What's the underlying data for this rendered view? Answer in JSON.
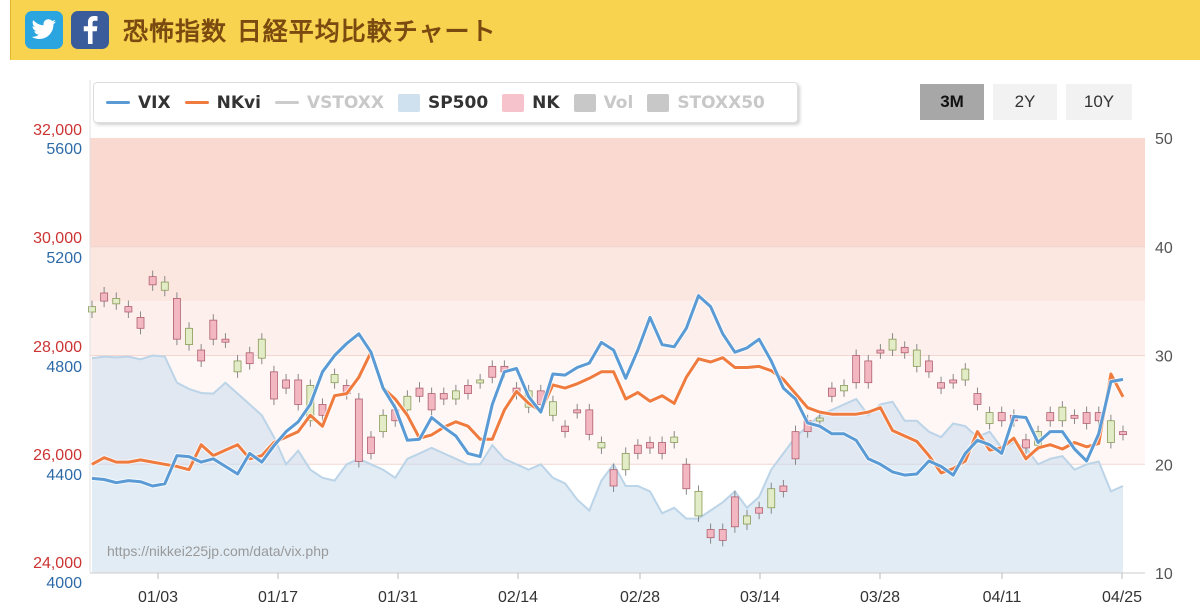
{
  "header": {
    "title": "恐怖指数 日経平均比較チャート",
    "icons": [
      "twitter-icon",
      "facebook-icon"
    ],
    "colors": {
      "background": "#f8d34f",
      "title": "#7a4b10",
      "twitter": "#2ba5e0",
      "facebook": "#3b5c9b"
    }
  },
  "legend": [
    {
      "label": "VIX",
      "swatch": "line",
      "color": "#5b9bd5",
      "active": true
    },
    {
      "label": "NKvi",
      "swatch": "line",
      "color": "#f07b3f",
      "active": true
    },
    {
      "label": "VSTOXX",
      "swatch": "line",
      "color": "#cccccc",
      "active": false
    },
    {
      "label": "SP500",
      "swatch": "box",
      "color": "#cfe0ee",
      "active": true
    },
    {
      "label": "NK",
      "swatch": "box",
      "color": "#f6c3cc",
      "active": true
    },
    {
      "label": "Vol",
      "swatch": "box",
      "color": "#c8c8c8",
      "active": false
    },
    {
      "label": "STOXX50",
      "swatch": "box",
      "color": "#c8c8c8",
      "active": false
    }
  ],
  "range_buttons": [
    {
      "label": "3M",
      "active": true
    },
    {
      "label": "2Y",
      "active": false
    },
    {
      "label": "10Y",
      "active": false
    }
  ],
  "chart_data": {
    "type": "line",
    "watermark": "https://nikkei225jp.com/data/vix.php",
    "x_labels": [
      "01/03",
      "01/17",
      "01/31",
      "02/14",
      "02/28",
      "03/14",
      "03/28",
      "04/11",
      "04/25"
    ],
    "axis_left_nk": {
      "ticks": [
        "24,000",
        "26,000",
        "28,000",
        "30,000",
        "32,000"
      ],
      "range": [
        24000,
        32000
      ],
      "color": "#cc3333"
    },
    "axis_left_sp": {
      "ticks": [
        "4000",
        "4400",
        "4800",
        "5200",
        "5600"
      ],
      "range": [
        4000,
        5600
      ],
      "color": "#2e6aa8"
    },
    "axis_right_vix": {
      "ticks": [
        "10",
        "20",
        "30",
        "40",
        "50"
      ],
      "range": [
        10,
        50
      ],
      "color": "#555555"
    },
    "vix_bands": [
      {
        "from": 40,
        "to": 50,
        "color": "#f9d9d0"
      },
      {
        "from": 35,
        "to": 40,
        "color": "#fbe6e0"
      },
      {
        "from": 30,
        "to": 35,
        "color": "#fdf0ec"
      },
      {
        "from": 20,
        "to": 30,
        "color": "#fef7f5"
      }
    ],
    "series": [
      {
        "name": "VIX",
        "color": "#5b9bd5",
        "values": [
          18.7,
          18.6,
          18.3,
          18.5,
          18.4,
          18.0,
          18.2,
          20.8,
          20.7,
          20.2,
          20.5,
          19.8,
          19.1,
          21.0,
          20.2,
          21.7,
          23.0,
          23.9,
          25.5,
          28.5,
          30.0,
          31.1,
          32.0,
          30.3,
          27.0,
          25.2,
          22.2,
          22.3,
          24.3,
          23.4,
          22.6,
          21.0,
          20.7,
          25.5,
          28.5,
          28.8,
          26.2,
          24.8,
          28.3,
          28.2,
          28.9,
          29.3,
          31.2,
          30.5,
          27.9,
          30.5,
          33.5,
          31.0,
          30.8,
          32.5,
          35.5,
          34.5,
          32.0,
          30.3,
          30.7,
          31.5,
          29.5,
          27.0,
          26.0,
          23.8,
          23.5,
          22.8,
          22.8,
          22.2,
          20.5,
          20.0,
          19.3,
          19.0,
          19.1,
          20.3,
          19.8,
          19.0,
          21.0,
          22.2,
          21.8,
          21.0,
          24.4,
          24.3,
          22.0,
          23.0,
          23.0,
          21.4,
          20.3,
          22.8,
          27.6,
          27.8
        ]
      },
      {
        "name": "NKvi",
        "color": "#f07b3f",
        "values": [
          20.0,
          20.6,
          20.2,
          20.2,
          20.4,
          20.2,
          20.0,
          19.8,
          19.5,
          21.8,
          20.8,
          21.3,
          21.8,
          20.5,
          20.8,
          22.0,
          22.5,
          23.0,
          24.5,
          23.5,
          26.3,
          26.5,
          28.0,
          30.3,
          27.0,
          26.0,
          24.5,
          22.4,
          22.7,
          23.4,
          23.9,
          23.5,
          22.3,
          22.3,
          25.0,
          26.7,
          25.6,
          24.9,
          27.3,
          27.0,
          27.4,
          27.9,
          28.5,
          28.5,
          26.0,
          26.6,
          25.8,
          26.3,
          25.6,
          28.0,
          29.7,
          29.4,
          29.8,
          28.9,
          28.9,
          29.0,
          28.6,
          27.8,
          26.5,
          25.2,
          24.8,
          24.6,
          24.6,
          24.6,
          24.8,
          25.2,
          23.1,
          22.6,
          22.1,
          20.8,
          19.2,
          19.6,
          20.3,
          23.0,
          21.3,
          21.5,
          22.4,
          20.5,
          21.5,
          21.8,
          21.4,
          22.0,
          21.6,
          21.9,
          28.3,
          26.2
        ]
      },
      {
        "name": "SP500",
        "color": "#cfe0ee",
        "y_axis": "sp",
        "values": [
          4790,
          4796,
          4793,
          4796,
          4786,
          4800,
          4796,
          4700,
          4677,
          4662,
          4660,
          4700,
          4660,
          4620,
          4580,
          4500,
          4400,
          4450,
          4380,
          4350,
          4340,
          4400,
          4420,
          4400,
          4380,
          4350,
          4420,
          4440,
          4460,
          4440,
          4420,
          4400,
          4400,
          4470,
          4420,
          4400,
          4380,
          4400,
          4350,
          4330,
          4270,
          4230,
          4340,
          4400,
          4320,
          4320,
          4300,
          4220,
          4240,
          4200,
          4200,
          4230,
          4260,
          4300,
          4240,
          4280,
          4380,
          4440,
          4500,
          4540,
          4580,
          4600,
          4620,
          4640,
          4580,
          4620,
          4630,
          4560,
          4560,
          4520,
          4500,
          4550,
          4540,
          4500,
          4520,
          4460,
          4480,
          4460,
          4400,
          4420,
          4430,
          4380,
          4400,
          4410,
          4300,
          4320
        ]
      }
    ],
    "nk_candles": [
      [
        28800,
        28900
      ],
      [
        29000,
        29150
      ],
      [
        28950,
        29050
      ],
      [
        28800,
        28900
      ],
      [
        28500,
        28700
      ],
      [
        29300,
        29450
      ],
      [
        29200,
        29350
      ],
      [
        28300,
        29050
      ],
      [
        28200,
        28500
      ],
      [
        27900,
        28100
      ],
      [
        28300,
        28650
      ],
      [
        28250,
        28300
      ],
      [
        27700,
        27900
      ],
      [
        27850,
        28050
      ],
      [
        27950,
        28300
      ],
      [
        27200,
        27700
      ],
      [
        27400,
        27550
      ],
      [
        27100,
        27550
      ],
      [
        26800,
        27450
      ],
      [
        26900,
        27100
      ],
      [
        27500,
        27650
      ],
      [
        27300,
        27450
      ],
      [
        26050,
        27200
      ],
      [
        26200,
        26500
      ],
      [
        26600,
        26900
      ],
      [
        26800,
        27000
      ],
      [
        27000,
        27250
      ],
      [
        27250,
        27400
      ],
      [
        27000,
        27300
      ],
      [
        27200,
        27300
      ],
      [
        27200,
        27350
      ],
      [
        27300,
        27450
      ],
      [
        27500,
        27550
      ],
      [
        27600,
        27800
      ],
      [
        27700,
        27800
      ],
      [
        27300,
        27400
      ],
      [
        27050,
        27350
      ],
      [
        27100,
        27350
      ],
      [
        26900,
        27150
      ],
      [
        26600,
        26700
      ],
      [
        26950,
        27000
      ],
      [
        26550,
        27000
      ],
      [
        26300,
        26400
      ],
      [
        25600,
        25900
      ],
      [
        25900,
        26200
      ],
      [
        26200,
        26350
      ],
      [
        26300,
        26400
      ],
      [
        26200,
        26400
      ],
      [
        26400,
        26500
      ],
      [
        25550,
        26000
      ],
      [
        25050,
        25500
      ],
      [
        24650,
        24800
      ],
      [
        24600,
        24800
      ],
      [
        24850,
        25400
      ],
      [
        24900,
        25050
      ],
      [
        25100,
        25200
      ],
      [
        25200,
        25550
      ],
      [
        25500,
        25600
      ],
      [
        26100,
        26600
      ],
      [
        26600,
        26800
      ],
      [
        26800,
        26850
      ],
      [
        27250,
        27400
      ],
      [
        27350,
        27450
      ],
      [
        27500,
        28000
      ],
      [
        27500,
        27900
      ],
      [
        28050,
        28100
      ],
      [
        28100,
        28300
      ],
      [
        28050,
        28150
      ],
      [
        27800,
        28100
      ],
      [
        27700,
        27900
      ],
      [
        27400,
        27500
      ],
      [
        27500,
        27550
      ],
      [
        27550,
        27750
      ],
      [
        27100,
        27300
      ],
      [
        26750,
        26950
      ],
      [
        26800,
        26950
      ],
      [
        26800,
        26900
      ],
      [
        26300,
        26450
      ],
      [
        26350,
        26600
      ],
      [
        26800,
        26950
      ],
      [
        26800,
        27050
      ],
      [
        26850,
        26900
      ],
      [
        26750,
        26950
      ],
      [
        26800,
        26950
      ],
      [
        26400,
        26800
      ],
      [
        26550,
        26600
      ]
    ]
  }
}
